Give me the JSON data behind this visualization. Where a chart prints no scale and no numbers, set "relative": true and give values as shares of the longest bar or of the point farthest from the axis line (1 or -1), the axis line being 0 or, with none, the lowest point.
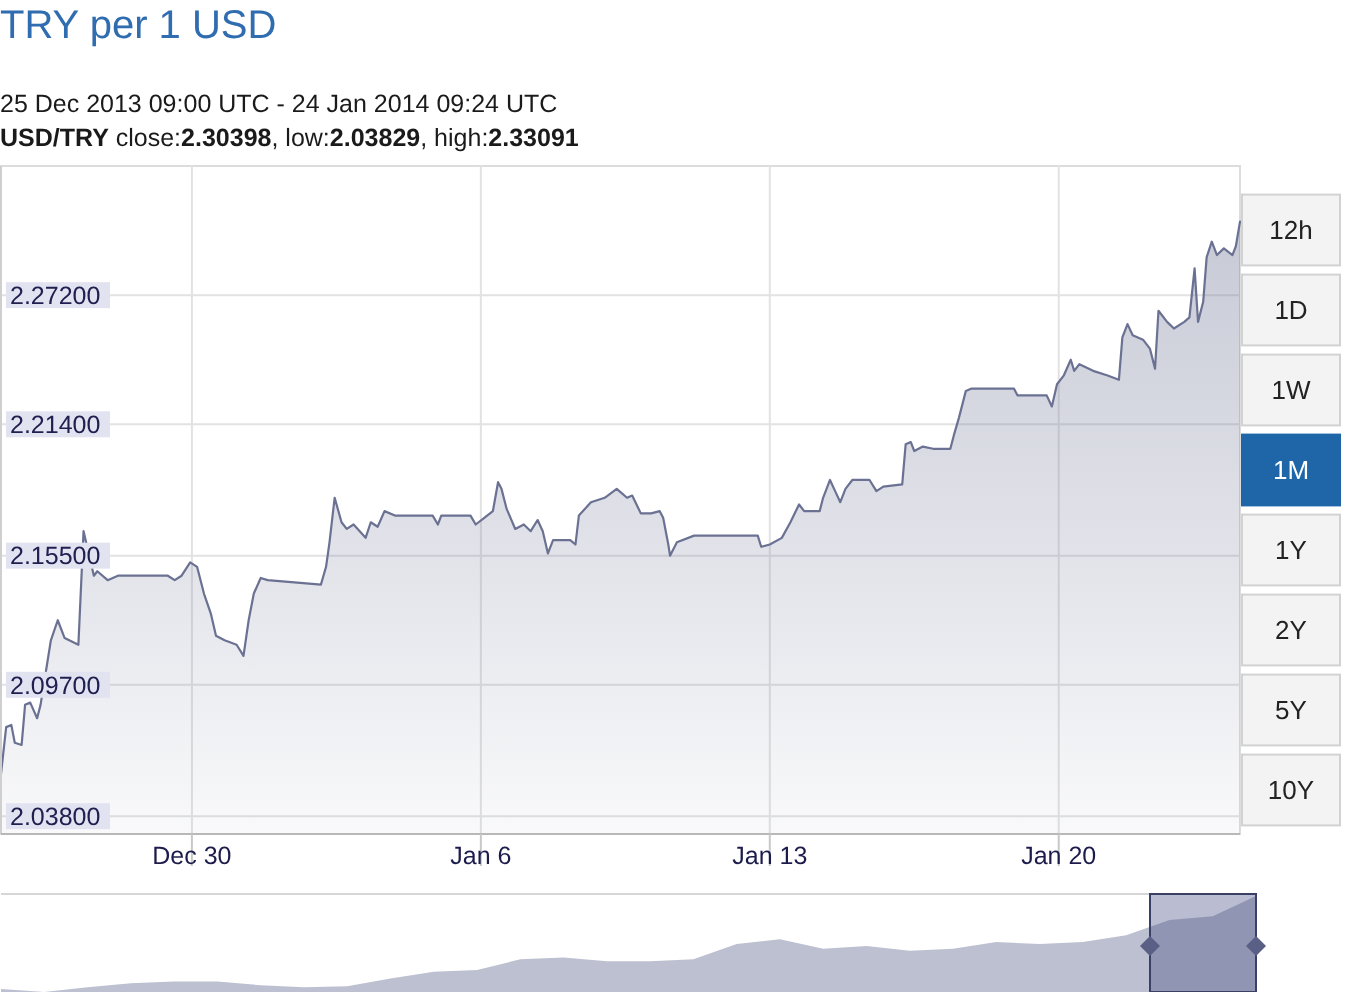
{
  "chart_data": [
    {
      "type": "area",
      "title": "TRY per 1 USD",
      "subtitle": "25 Dec 2013 09:00 UTC - 24 Jan 2014 09:24 UTC\nUSD/TRY close:2.30398, low:2.03829, high:2.33091",
      "annotations": [
        "12h",
        "1D",
        "1W",
        "1M",
        "1Y",
        "2Y",
        "5Y",
        "10Y"
      ],
      "x": [
        "2013-12-25T09:00",
        "2013-12-25T12:00",
        "2013-12-25T15:00",
        "2013-12-25T17:00",
        "2013-12-25T21:00",
        "2013-12-25T23:00",
        "2013-12-26T02:00",
        "2013-12-26T06:00",
        "2013-12-26T08:00",
        "2013-12-26T14:00",
        "2013-12-26T18:00",
        "2013-12-26T22:00",
        "2013-12-27T06:00",
        "2013-12-27T09:00",
        "2013-12-27T15:00",
        "2013-12-27T17:00",
        "2013-12-27T23:00",
        "2013-12-28T05:00",
        "2013-12-29T10:00",
        "2013-12-29T14:00",
        "2013-12-29T18:00",
        "2013-12-29T23:00",
        "2013-12-30T03:00",
        "2013-12-30T07:00",
        "2013-12-30T11:00",
        "2013-12-30T14:00",
        "2013-12-30T19:00",
        "2013-12-31T02:00",
        "2013-12-31T06:00",
        "2013-12-31T09:00",
        "2013-12-31T12:00",
        "2013-12-31T16:00",
        "2013-12-31T20:00",
        "2014-01-02T03:00",
        "2014-01-02T06:00",
        "2014-01-02T08:00",
        "2014-01-02T11:00",
        "2014-01-02T15:00",
        "2014-01-02T18:00",
        "2014-01-02T22:00",
        "2014-01-03T05:00",
        "2014-01-03T08:00",
        "2014-01-03T12:00",
        "2014-01-03T16:00",
        "2014-01-03T22:00",
        "2014-01-04T20:00",
        "2014-01-04T23:00",
        "2014-01-05T01:00",
        "2014-01-05T18:00",
        "2014-01-05T21:00",
        "2014-01-06T02:00",
        "2014-01-06T07:00",
        "2014-01-06T10:00",
        "2014-01-06T12:00",
        "2014-01-06T15:00",
        "2014-01-06T20:00",
        "2014-01-07T01:00",
        "2014-01-07T05:00",
        "2014-01-07T09:00",
        "2014-01-07T12:00",
        "2014-01-07T15:00",
        "2014-01-07T18:00",
        "2014-01-08T04:00",
        "2014-01-08T07:00",
        "2014-01-08T09:00",
        "2014-01-08T16:00",
        "2014-01-09T00:00",
        "2014-01-09T07:00",
        "2014-01-09T13:00",
        "2014-01-09T16:00",
        "2014-01-09T21:00",
        "2014-01-10T03:00",
        "2014-01-10T08:00",
        "2014-01-10T10:00",
        "2014-01-10T13:00",
        "2014-01-10T14:00",
        "2014-01-10T18:00",
        "2014-01-11T04:00",
        "2014-01-12T17:00",
        "2014-01-12T19:00",
        "2014-01-13T00:00",
        "2014-01-13T07:00",
        "2014-01-13T12:00",
        "2014-01-13T17:00",
        "2014-01-13T20:00",
        "2014-01-14T05:00",
        "2014-01-14T07:00",
        "2014-01-14T11:00",
        "2014-01-14T14:00",
        "2014-01-14T17:00",
        "2014-01-14T20:00",
        "2014-01-15T00:00",
        "2014-01-15T10:00",
        "2014-01-15T14:00",
        "2014-01-15T18:00",
        "2014-01-16T05:00",
        "2014-01-16T07:00",
        "2014-01-16T10:00",
        "2014-01-16T12:00",
        "2014-01-16T17:00",
        "2014-01-16T23:00",
        "2014-01-17T09:00",
        "2014-01-17T11:00",
        "2014-01-17T14:00",
        "2014-01-17T18:00",
        "2014-01-17T21:00",
        "2014-01-18T22:00",
        "2014-01-19T00:00",
        "2014-01-19T17:00",
        "2014-01-19T20:00",
        "2014-01-19T23:00",
        "2014-01-20T03:00",
        "2014-01-20T07:00",
        "2014-01-20T09:00",
        "2014-01-20T12:00",
        "2014-01-20T20:00",
        "2014-01-21T04:00",
        "2014-01-21T11:00",
        "2014-01-21T13:00",
        "2014-01-21T16:00",
        "2014-01-21T19:00",
        "2014-01-22T01:00",
        "2014-01-22T05:00",
        "2014-01-22T08:00",
        "2014-01-22T10:00",
        "2014-01-22T15:00",
        "2014-01-22T19:00",
        "2014-01-23T01:00",
        "2014-01-23T04:00",
        "2014-01-23T07:00",
        "2014-01-23T09:00",
        "2014-01-23T12:00",
        "2014-01-23T14:00",
        "2014-01-23T17:00",
        "2014-01-23T20:00",
        "2014-01-24T00:00",
        "2014-01-24T05:00",
        "2014-01-24T07:00",
        "2014-01-24T09:24"
      ],
      "color": "#6b7192",
      "values": [
        2.057,
        2.078,
        2.079,
        2.071,
        2.07,
        2.088,
        2.089,
        2.082,
        2.088,
        2.117,
        2.126,
        2.118,
        2.115,
        2.166,
        2.146,
        2.148,
        2.144,
        2.146,
        2.146,
        2.144,
        2.146,
        2.152,
        2.15,
        2.138,
        2.129,
        2.119,
        2.117,
        2.115,
        2.11,
        2.126,
        2.138,
        2.145,
        2.144,
        2.142,
        2.15,
        2.161,
        2.181,
        2.17,
        2.167,
        2.169,
        2.163,
        2.17,
        2.168,
        2.175,
        2.173,
        2.173,
        2.169,
        2.173,
        2.173,
        2.169,
        2.172,
        2.175,
        2.188,
        2.185,
        2.176,
        2.167,
        2.169,
        2.166,
        2.171,
        2.166,
        2.156,
        2.162,
        2.162,
        2.16,
        2.173,
        2.179,
        2.181,
        2.185,
        2.181,
        2.182,
        2.174,
        2.174,
        2.175,
        2.172,
        2.16,
        2.155,
        2.161,
        2.164,
        2.164,
        2.159,
        2.16,
        2.163,
        2.17,
        2.178,
        2.175,
        2.175,
        2.181,
        2.189,
        2.184,
        2.179,
        2.185,
        2.189,
        2.189,
        2.184,
        2.186,
        2.187,
        2.205,
        2.206,
        2.202,
        2.204,
        2.203,
        2.203,
        2.209,
        2.217,
        2.229,
        2.23,
        2.23,
        2.227,
        2.227,
        2.222,
        2.232,
        2.236,
        2.243,
        2.238,
        2.241,
        2.238,
        2.236,
        2.234,
        2.253,
        2.259,
        2.254,
        2.252,
        2.248,
        2.239,
        2.265,
        2.26,
        2.257,
        2.26,
        2.262,
        2.284,
        2.26,
        2.269,
        2.289,
        2.296,
        2.29,
        2.293,
        2.29,
        2.294,
        2.305
      ],
      "xlim": [
        "2013-12-25T09:00",
        "2014-01-24T09:24"
      ],
      "ylim": [
        2.03,
        2.33
      ],
      "xticks": [
        {
          "value": "2013-12-30",
          "label": "Dec 30"
        },
        {
          "value": "2014-01-06",
          "label": "Jan 6"
        },
        {
          "value": "2014-01-13",
          "label": "Jan 13"
        },
        {
          "value": "2014-01-20",
          "label": "Jan 20"
        }
      ],
      "yticks": [
        {
          "value": 2.038,
          "label": "2.03800"
        },
        {
          "value": 2.097,
          "label": "2.09700"
        },
        {
          "value": 2.155,
          "label": "2.15500"
        },
        {
          "value": 2.214,
          "label": "2.21400"
        },
        {
          "value": 2.272,
          "label": "2.27200"
        }
      ],
      "grid": true
    },
    {
      "type": "area",
      "relative": true,
      "categories": [
        null,
        null,
        null,
        null,
        null,
        null,
        null,
        null,
        null,
        null,
        null,
        null,
        null,
        null,
        null,
        null,
        null,
        null,
        null,
        null,
        null,
        null,
        null,
        null,
        null,
        null,
        null,
        null,
        null,
        null
      ],
      "color": "#bcc0d0",
      "values": [
        0.03,
        0,
        0.05,
        0.09,
        0.11,
        0.11,
        0.07,
        0.05,
        0.06,
        0.14,
        0.21,
        0.23,
        0.34,
        0.36,
        0.32,
        0.32,
        0.34,
        0.5,
        0.55,
        0.45,
        0.48,
        0.43,
        0.45,
        0.52,
        0.5,
        0.52,
        0.59,
        0.75,
        0.79,
        1
      ]
    }
  ]
}
